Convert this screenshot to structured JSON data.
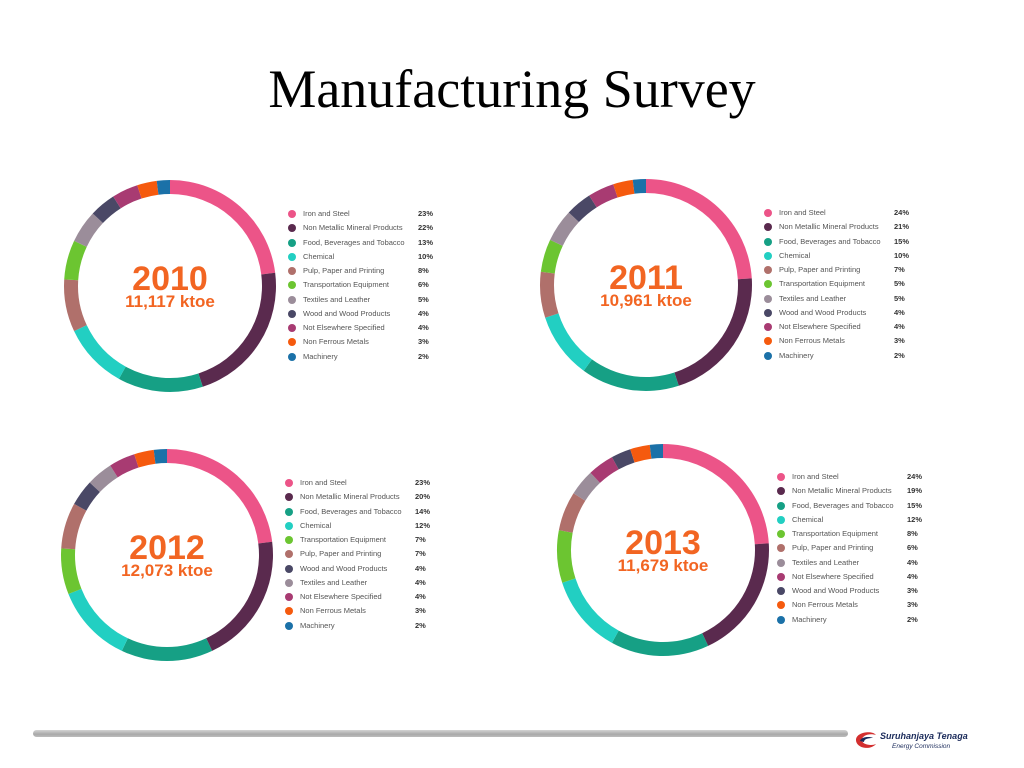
{
  "title": "Manufacturing Survey",
  "logo": {
    "name": "Suruhanjaya Tenaga",
    "subtitle": "Energy Commission"
  },
  "chart_data": [
    {
      "type": "pie",
      "year": "2010",
      "total": "11,117 ktoe",
      "categories": [
        "Iron and Steel",
        "Non Metallic Mineral Products",
        "Food, Beverages and Tobacco",
        "Chemical",
        "Pulp, Paper and Printing",
        "Transportation Equipment",
        "Textiles and Leather",
        "Wood and Wood Products",
        "Not Elsewhere Specified",
        "Non Ferrous Metals",
        "Machinery"
      ],
      "labels": [
        "23%",
        "22%",
        "13%",
        "10%",
        "8%",
        "6%",
        "5%",
        "4%",
        "4%",
        "3%",
        "2%"
      ],
      "values": [
        23,
        22,
        13,
        10,
        8,
        6,
        5,
        4,
        4,
        3,
        2
      ],
      "colors": [
        "#ec5488",
        "#5a2a4e",
        "#16a085",
        "#22cfc2",
        "#b0706b",
        "#6cc531",
        "#9b8d9a",
        "#4a4866",
        "#a83b72",
        "#f55a0e",
        "#1b71a8"
      ]
    },
    {
      "type": "pie",
      "year": "2011",
      "total": "10,961 ktoe",
      "categories": [
        "Iron and Steel",
        "Non Metallic Mineral Products",
        "Food, Beverages and Tobacco",
        "Chemical",
        "Pulp, Paper and Printing",
        "Transportation Equipment",
        "Textiles and Leather",
        "Wood and Wood Products",
        "Not Elsewhere Specified",
        "Non Ferrous Metals",
        "Machinery"
      ],
      "labels": [
        "24%",
        "21%",
        "15%",
        "10%",
        "7%",
        "5%",
        "5%",
        "4%",
        "4%",
        "3%",
        "2%"
      ],
      "values": [
        24,
        21,
        15,
        10,
        7,
        5,
        5,
        4,
        4,
        3,
        2
      ],
      "colors": [
        "#ec5488",
        "#5a2a4e",
        "#16a085",
        "#22cfc2",
        "#b0706b",
        "#6cc531",
        "#9b8d9a",
        "#4a4866",
        "#a83b72",
        "#f55a0e",
        "#1b71a8"
      ]
    },
    {
      "type": "pie",
      "year": "2012",
      "total": "12,073 ktoe",
      "categories": [
        "Iron and Steel",
        "Non Metallic Mineral Products",
        "Food, Beverages and Tobacco",
        "Chemical",
        "Transportation Equipment",
        "Pulp, Paper and Printing",
        "Wood and Wood Products",
        "Textiles and Leather",
        "Not Elsewhere Specified",
        "Non Ferrous Metals",
        "Machinery"
      ],
      "labels": [
        "23%",
        "20%",
        "14%",
        "12%",
        "7%",
        "7%",
        "4%",
        "4%",
        "4%",
        "3%",
        "2%"
      ],
      "values": [
        23,
        20,
        14,
        12,
        7,
        7,
        4,
        4,
        4,
        3,
        2
      ],
      "colors": [
        "#ec5488",
        "#5a2a4e",
        "#16a085",
        "#22cfc2",
        "#6cc531",
        "#b0706b",
        "#4a4866",
        "#9b8d9a",
        "#a83b72",
        "#f55a0e",
        "#1b71a8"
      ]
    },
    {
      "type": "pie",
      "year": "2013",
      "total": "11,679 ktoe",
      "categories": [
        "Iron and Steel",
        "Non Metallic Mineral Products",
        "Food, Beverages and Tobacco",
        "Chemical",
        "Transportation Equipment",
        "Pulp, Paper and Printing",
        "Textiles and Leather",
        "Not Elsewhere Specified",
        "Wood and Wood Products",
        "Non Ferrous Metals",
        "Machinery"
      ],
      "labels": [
        "24%",
        "19%",
        "15%",
        "12%",
        "8%",
        "6%",
        "4%",
        "4%",
        "3%",
        "3%",
        "2%"
      ],
      "values": [
        24,
        19,
        15,
        12,
        8,
        6,
        4,
        4,
        3,
        3,
        2
      ],
      "colors": [
        "#ec5488",
        "#5a2a4e",
        "#16a085",
        "#22cfc2",
        "#6cc531",
        "#b0706b",
        "#9b8d9a",
        "#a83b72",
        "#4a4866",
        "#f55a0e",
        "#1b71a8"
      ]
    }
  ]
}
